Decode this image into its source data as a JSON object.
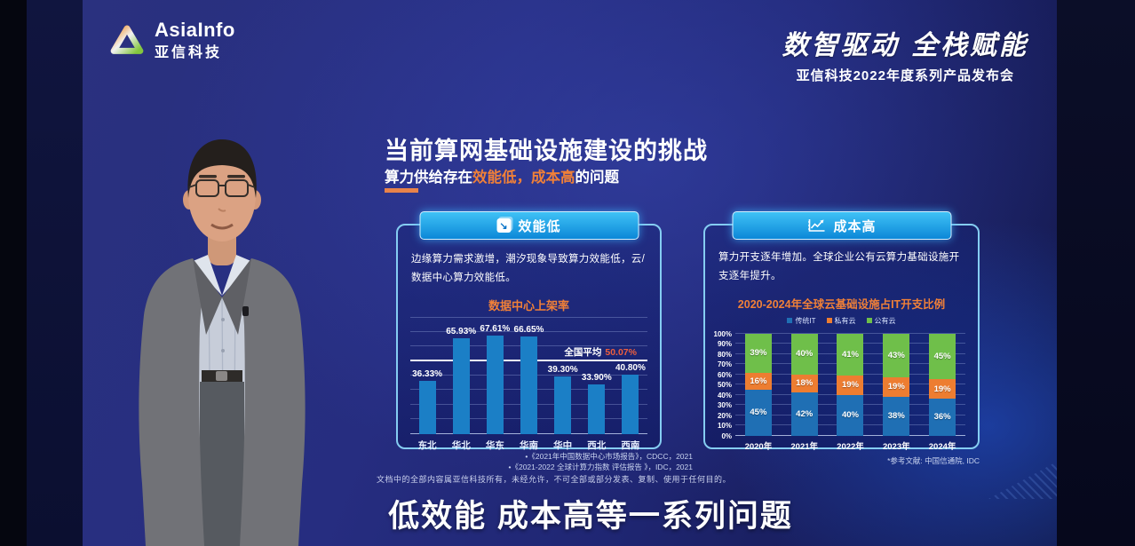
{
  "brand": {
    "logo_text_en": "AsiaInfo",
    "logo_text_cn": "亚信科技"
  },
  "header_right": {
    "slogan": "数智驱动 全栈赋能",
    "event": "亚信科技2022年度系列产品发布会"
  },
  "slide": {
    "title": "当前算网基础设施建设的挑战",
    "subtitle_prefix": "算力供给存在",
    "subtitle_highlight": "效能低，成本高",
    "subtitle_suffix": "的问题",
    "left_panel": {
      "badge": "效能低",
      "badge_icon": "down-trend-arrow-icon",
      "description": "边缘算力需求激增，潮汐现象导致算力效能低，云/数据中心算力效能低。",
      "footnotes": [
        "•《2021年中国数据中心市场报告》，CDCC，2021",
        "•《2021-2022 全球计算力指数 评估报告 》，IDC，2021"
      ]
    },
    "right_panel": {
      "badge": "成本高",
      "badge_icon": "line-chart-up-icon",
      "description": "算力开支逐年增加。全球企业公有云算力基础设施开支逐年提升。",
      "footnote": "*参考文献: 中国信通院, IDC"
    }
  },
  "chart_data": [
    {
      "type": "bar",
      "title": "数据中心上架率",
      "categories": [
        "东北",
        "华北",
        "华东",
        "华南",
        "华中",
        "西北",
        "西南"
      ],
      "values": [
        36.33,
        65.93,
        67.61,
        66.65,
        39.3,
        33.9,
        40.8
      ],
      "value_labels": [
        "36.33%",
        "65.93%",
        "67.61%",
        "66.65%",
        "39.30%",
        "33.90%",
        "40.80%"
      ],
      "average": 50.07,
      "average_label": "全国平均",
      "average_value": "50.07%",
      "xlabel": "",
      "ylabel": "",
      "ylim": [
        0,
        80
      ],
      "grid": true,
      "bar_color": "#1b7fc6"
    },
    {
      "type": "bar",
      "subtype": "stacked",
      "title": "2020-2024年全球云基础设施占IT开支比例",
      "categories": [
        "2020年",
        "2021年",
        "2022年",
        "2023年",
        "2024年"
      ],
      "series": [
        {
          "name": "传统IT",
          "color": "#1f6fb4",
          "values": [
            45,
            42,
            40,
            38,
            36
          ]
        },
        {
          "name": "私有云",
          "color": "#ed7d31",
          "values": [
            16,
            18,
            19,
            19,
            19
          ]
        },
        {
          "name": "公有云",
          "color": "#6fbf4a",
          "values": [
            39,
            40,
            41,
            43,
            45
          ]
        }
      ],
      "xlabel": "",
      "ylabel": "",
      "ylim": [
        0,
        100
      ],
      "ytick_step": 10,
      "grid": true,
      "legend_position": "top"
    }
  ],
  "footer": {
    "disclaimer": "文档中的全部内容属亚信科技所有，未经允许，不可全部或部分发表、复制、使用于任何目的。",
    "caption": "低效能 成本高等一系列问题"
  },
  "colors": {
    "accent_orange": "#f08038",
    "average_value_red": "#ee5f3e",
    "panel_border_blue": "#85cdf2",
    "badge_blue_top": "#3fc2f6",
    "badge_blue_bottom": "#0c87d8",
    "stage_blue": "#262d80"
  }
}
